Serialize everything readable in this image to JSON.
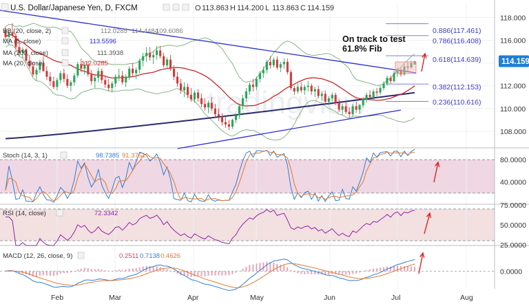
{
  "header": {
    "title": "U.S. Dollar/Japanese Yen, D, FXCM",
    "ohlc": [
      {
        "key": "O",
        "value": "113.863"
      },
      {
        "key": "H",
        "value": "114.200"
      },
      {
        "key": "L",
        "value": "113.863"
      },
      {
        "key": "C",
        "value": "114.159"
      }
    ],
    "indicators": [
      {
        "label": "BB (20, close, 2)",
        "values": [
          "112.0285",
          "114.4484",
          "109.6086"
        ],
        "color": "#7d7d7d"
      },
      {
        "label": "MA (5, close)",
        "values": [
          "113.5596"
        ],
        "color": "#2a2acc"
      },
      {
        "label": "MA (200, close)",
        "values": [
          "111.3938"
        ],
        "color": "#555555"
      },
      {
        "label": "MA (20, close)",
        "values": [
          "112.0285"
        ],
        "color": "#c62828"
      }
    ]
  },
  "watermark": "tradingview",
  "annotation": {
    "line1": "On track to test",
    "line2": "61.8% Fib"
  },
  "fib_levels": [
    {
      "ratio": "0.886",
      "price": 117.461,
      "label": "0.886(117.461)"
    },
    {
      "ratio": "0.786",
      "price": 116.408,
      "label": "0.786(116.408)"
    },
    {
      "ratio": "0.618",
      "price": 114.639,
      "label": "0.618(114.639)"
    },
    {
      "ratio": "0.382",
      "price": 112.153,
      "label": "0.382(112.153)"
    },
    {
      "ratio": "0.236",
      "price": 110.616,
      "label": "0.236(110.616)"
    }
  ],
  "last_price": {
    "label": "114.159",
    "value": 114.159,
    "color": "#1e7fd6"
  },
  "panels": {
    "stoch": {
      "label": "Stoch (14, 3, 1)",
      "values": [
        "98.7385",
        "91.3751"
      ],
      "colors": [
        "#2f7ed8",
        "#e07a2f"
      ]
    },
    "rsi": {
      "label": "RSI (14, close)",
      "values": [
        "72.3342"
      ],
      "colors": [
        "#8e24aa"
      ]
    },
    "macd": {
      "label": "MACD (12, 26, close, 9)",
      "values": [
        "0.2511",
        "0.7138",
        "0.4626"
      ],
      "colors": [
        "#d84060",
        "#2f7ed8",
        "#e07a2f"
      ]
    }
  },
  "chart_data": {
    "type": "candlestick",
    "title": "U.S. Dollar/Japanese Yen, D, FXCM",
    "x_labels": [
      "Feb",
      "Mar",
      "Apr",
      "May",
      "Jun",
      "Jul",
      "Aug"
    ],
    "price_axis": {
      "ticks": [
        "118.000",
        "116.000",
        "114.000",
        "112.000",
        "110.000",
        "108.000"
      ],
      "range": [
        106.6,
        119.3
      ]
    },
    "stoch_axis": {
      "ticks": [
        "80.0000",
        "40.0000"
      ],
      "range": [
        0,
        100
      ],
      "band": [
        20,
        80
      ]
    },
    "rsi_axis": {
      "ticks": [
        "75.0000",
        "50.0000",
        "25.0000"
      ],
      "range": [
        24,
        76
      ],
      "band": [
        30,
        70
      ]
    },
    "macd_axis": {
      "ticks": [
        "0.0000"
      ],
      "range": [
        -1.1,
        1.6
      ]
    },
    "candles": [
      [
        116.9,
        117.2,
        116.0,
        116.3
      ],
      [
        116.3,
        116.9,
        115.6,
        116.7
      ],
      [
        116.7,
        117.5,
        116.2,
        116.4
      ],
      [
        116.4,
        116.6,
        115.2,
        115.4
      ],
      [
        115.4,
        115.8,
        114.6,
        114.9
      ],
      [
        114.9,
        115.4,
        114.4,
        115.2
      ],
      [
        115.2,
        115.3,
        114.0,
        114.2
      ],
      [
        114.2,
        114.7,
        113.5,
        113.7
      ],
      [
        113.7,
        114.1,
        112.8,
        113.0
      ],
      [
        113.0,
        113.6,
        112.4,
        113.4
      ],
      [
        113.4,
        114.3,
        113.1,
        114.0
      ],
      [
        114.0,
        114.6,
        113.2,
        113.3
      ],
      [
        113.3,
        113.7,
        112.5,
        112.8
      ],
      [
        112.8,
        113.2,
        112.0,
        112.4
      ],
      [
        112.4,
        112.8,
        111.7,
        111.9
      ],
      [
        111.9,
        112.7,
        111.6,
        112.5
      ],
      [
        112.5,
        113.3,
        112.2,
        113.1
      ],
      [
        113.1,
        113.5,
        112.3,
        112.6
      ],
      [
        112.6,
        113.0,
        111.8,
        112.0
      ],
      [
        112.0,
        112.5,
        111.5,
        112.3
      ],
      [
        112.3,
        113.1,
        112.0,
        112.9
      ],
      [
        112.9,
        114.1,
        112.7,
        113.9
      ],
      [
        113.9,
        114.4,
        113.2,
        113.5
      ],
      [
        113.5,
        114.1,
        113.0,
        113.8
      ],
      [
        113.8,
        114.2,
        112.8,
        113.0
      ],
      [
        113.0,
        113.4,
        112.1,
        112.4
      ],
      [
        112.4,
        113.0,
        111.8,
        112.7
      ],
      [
        112.7,
        113.6,
        112.3,
        113.3
      ],
      [
        113.3,
        113.5,
        112.2,
        112.5
      ],
      [
        112.5,
        112.9,
        111.8,
        112.1
      ],
      [
        112.1,
        112.6,
        111.5,
        111.8
      ],
      [
        111.8,
        112.4,
        111.4,
        112.2
      ],
      [
        112.2,
        113.0,
        111.9,
        112.8
      ],
      [
        112.8,
        113.5,
        112.4,
        112.9
      ],
      [
        112.9,
        113.3,
        112.1,
        112.3
      ],
      [
        112.3,
        113.0,
        111.9,
        112.8
      ],
      [
        112.8,
        113.7,
        112.5,
        113.5
      ],
      [
        113.5,
        114.0,
        112.8,
        113.1
      ],
      [
        113.1,
        113.6,
        112.6,
        113.4
      ],
      [
        113.4,
        114.4,
        113.1,
        114.2
      ],
      [
        114.2,
        114.9,
        113.7,
        114.6
      ],
      [
        114.6,
        115.4,
        114.1,
        114.9
      ],
      [
        114.9,
        115.4,
        114.2,
        114.5
      ],
      [
        114.5,
        115.0,
        113.9,
        114.7
      ],
      [
        114.7,
        115.5,
        114.3,
        115.1
      ],
      [
        115.1,
        115.5,
        114.4,
        114.6
      ],
      [
        114.6,
        114.9,
        113.6,
        113.8
      ],
      [
        113.8,
        114.5,
        113.5,
        114.3
      ],
      [
        114.3,
        114.7,
        113.3,
        113.5
      ],
      [
        113.5,
        113.8,
        112.5,
        112.8
      ],
      [
        112.8,
        113.2,
        111.9,
        112.2
      ],
      [
        112.2,
        112.6,
        111.3,
        111.6
      ],
      [
        111.6,
        112.3,
        111.0,
        111.9
      ],
      [
        111.9,
        112.2,
        110.9,
        111.2
      ],
      [
        111.2,
        111.8,
        110.6,
        110.8
      ],
      [
        110.8,
        111.6,
        110.5,
        111.4
      ],
      [
        111.4,
        111.7,
        110.6,
        110.9
      ],
      [
        110.9,
        111.3,
        110.1,
        110.4
      ],
      [
        110.4,
        110.9,
        109.8,
        110.1
      ],
      [
        110.1,
        110.7,
        109.6,
        110.5
      ],
      [
        110.5,
        111.0,
        109.8,
        110.0
      ],
      [
        110.0,
        110.4,
        109.2,
        109.5
      ],
      [
        109.5,
        110.0,
        108.9,
        109.3
      ],
      [
        109.3,
        109.6,
        108.5,
        108.8
      ],
      [
        108.8,
        109.3,
        108.3,
        108.6
      ],
      [
        108.6,
        109.0,
        108.1,
        108.4
      ],
      [
        108.4,
        109.1,
        108.2,
        109.0
      ],
      [
        109.0,
        109.6,
        108.7,
        109.4
      ],
      [
        109.4,
        110.4,
        109.1,
        110.2
      ],
      [
        110.2,
        111.2,
        109.9,
        110.9
      ],
      [
        110.9,
        111.8,
        110.6,
        111.5
      ],
      [
        111.5,
        112.3,
        111.2,
        112.1
      ],
      [
        112.1,
        112.6,
        111.5,
        111.9
      ],
      [
        111.9,
        112.8,
        111.6,
        112.6
      ],
      [
        112.6,
        113.3,
        112.3,
        113.1
      ],
      [
        113.1,
        113.7,
        112.7,
        113.4
      ],
      [
        113.4,
        114.3,
        113.1,
        114.1
      ],
      [
        114.1,
        114.6,
        113.5,
        113.8
      ],
      [
        113.8,
        114.5,
        113.6,
        114.3
      ],
      [
        114.3,
        114.6,
        113.4,
        113.6
      ],
      [
        113.6,
        114.1,
        113.2,
        113.9
      ],
      [
        113.9,
        114.4,
        113.5,
        114.1
      ],
      [
        114.1,
        114.4,
        113.0,
        113.2
      ],
      [
        113.2,
        113.4,
        111.6,
        111.8
      ],
      [
        111.8,
        112.0,
        111.2,
        111.5
      ],
      [
        111.5,
        112.2,
        111.3,
        111.9
      ],
      [
        111.9,
        112.3,
        111.4,
        111.6
      ],
      [
        111.6,
        112.1,
        111.2,
        111.9
      ],
      [
        111.9,
        112.4,
        111.5,
        112.0
      ],
      [
        112.0,
        112.2,
        111.2,
        111.5
      ],
      [
        111.5,
        111.9,
        111.0,
        111.7
      ],
      [
        111.7,
        112.0,
        110.9,
        111.1
      ],
      [
        111.1,
        111.5,
        110.7,
        111.3
      ],
      [
        111.3,
        111.6,
        110.4,
        110.6
      ],
      [
        110.6,
        111.1,
        110.3,
        110.9
      ],
      [
        110.9,
        111.4,
        110.6,
        111.2
      ],
      [
        111.2,
        111.4,
        110.3,
        110.5
      ],
      [
        110.5,
        110.8,
        109.7,
        109.9
      ],
      [
        109.9,
        110.4,
        109.4,
        110.2
      ],
      [
        110.2,
        110.6,
        109.5,
        109.7
      ],
      [
        109.7,
        110.1,
        109.2,
        109.5
      ],
      [
        109.5,
        110.4,
        109.3,
        110.2
      ],
      [
        110.2,
        110.6,
        109.6,
        109.9
      ],
      [
        109.9,
        110.4,
        109.5,
        110.3
      ],
      [
        110.3,
        111.0,
        110.1,
        110.8
      ],
      [
        110.8,
        111.4,
        110.5,
        111.2
      ],
      [
        111.2,
        111.6,
        110.8,
        111.0
      ],
      [
        111.0,
        111.7,
        110.8,
        111.5
      ],
      [
        111.5,
        111.8,
        111.1,
        111.4
      ],
      [
        111.4,
        112.0,
        111.2,
        111.8
      ],
      [
        111.8,
        112.4,
        111.6,
        112.2
      ],
      [
        112.2,
        112.9,
        112.0,
        112.7
      ],
      [
        112.7,
        112.9,
        112.2,
        112.4
      ],
      [
        112.4,
        113.3,
        112.3,
        113.1
      ],
      [
        113.1,
        113.6,
        112.8,
        113.4
      ],
      [
        113.4,
        113.6,
        112.8,
        113.0
      ],
      [
        113.0,
        113.9,
        112.9,
        113.7
      ],
      [
        113.7,
        114.1,
        113.3,
        113.6
      ],
      [
        113.6,
        114.2,
        113.5,
        114.0
      ],
      [
        113.863,
        114.2,
        113.863,
        114.159
      ]
    ]
  }
}
